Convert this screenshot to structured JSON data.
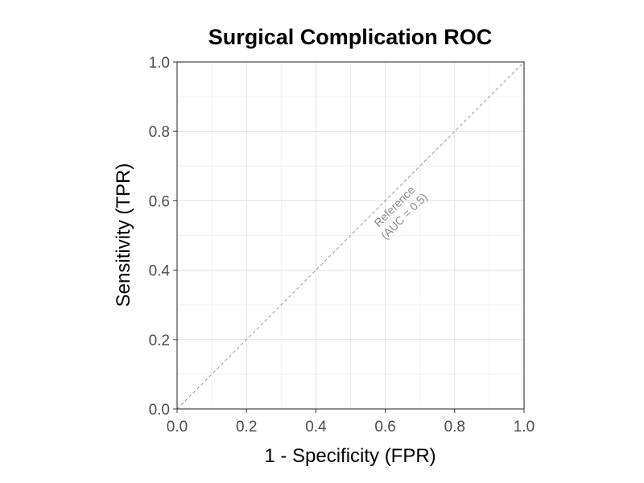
{
  "chart_data": {
    "type": "line",
    "title": "Surgical Complication ROC",
    "xlabel": "1 - Specificity (FPR)",
    "ylabel": "Sensitivity (TPR)",
    "xlim": [
      0,
      1
    ],
    "ylim": [
      0,
      1
    ],
    "x_ticks": [
      "0.0",
      "0.2",
      "0.4",
      "0.6",
      "0.8",
      "1.0"
    ],
    "y_ticks": [
      "0.0",
      "0.2",
      "0.4",
      "0.6",
      "0.8",
      "1.0"
    ],
    "grid": true,
    "series": [
      {
        "x": [
          0,
          1
        ],
        "y": [
          0,
          1
        ],
        "style": "dashed",
        "color": "#999999"
      }
    ],
    "annotations": [
      {
        "text": [
          "Reference",
          "(AUC = 0.5)"
        ],
        "x": 0.64,
        "y": 0.57,
        "rotation_deg": -45,
        "color": "#8c8c8c"
      }
    ]
  }
}
